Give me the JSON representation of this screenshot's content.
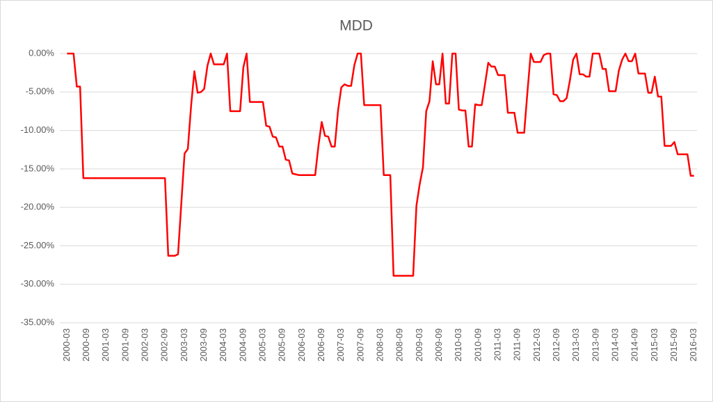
{
  "chart_data": {
    "type": "line",
    "title": "MDD",
    "categories": [
      "2000-03",
      null,
      null,
      null,
      null,
      null,
      "2000-09",
      null,
      null,
      null,
      null,
      null,
      "2001-03",
      null,
      null,
      null,
      null,
      null,
      "2001-09",
      null,
      null,
      null,
      null,
      null,
      "2002-03",
      null,
      null,
      null,
      null,
      null,
      "2002-09",
      null,
      null,
      null,
      null,
      null,
      "2003-03",
      null,
      null,
      null,
      null,
      null,
      "2003-09",
      null,
      null,
      null,
      null,
      null,
      "2004-03",
      null,
      null,
      null,
      null,
      null,
      "2004-09",
      null,
      null,
      null,
      null,
      null,
      "2005-03",
      null,
      null,
      null,
      null,
      null,
      "2005-09",
      null,
      null,
      null,
      null,
      null,
      "2006-03",
      null,
      null,
      null,
      null,
      null,
      "2006-09",
      null,
      null,
      null,
      null,
      null,
      "2007-03",
      null,
      null,
      null,
      null,
      null,
      "2007-09",
      null,
      null,
      null,
      null,
      null,
      "2008-03",
      null,
      null,
      null,
      null,
      null,
      "2008-09",
      null,
      null,
      null,
      null,
      null,
      "2009-03",
      null,
      null,
      null,
      null,
      null,
      "2009-09",
      null,
      null,
      null,
      null,
      null,
      "2010-03",
      null,
      null,
      null,
      null,
      null,
      "2010-09",
      null,
      null,
      null,
      null,
      null,
      "2011-03",
      null,
      null,
      null,
      null,
      null,
      "2011-09",
      null,
      null,
      null,
      null,
      null,
      "2012-03",
      null,
      null,
      null,
      null,
      null,
      "2012-09",
      null,
      null,
      null,
      null,
      null,
      "2013-03",
      null,
      null,
      null,
      null,
      null,
      "2013-09",
      null,
      null,
      null,
      null,
      null,
      "2014-03",
      null,
      null,
      null,
      null,
      null,
      "2014-09",
      null,
      null,
      null,
      null,
      null,
      "2015-03",
      null,
      null,
      null,
      null,
      null,
      "2015-09",
      null,
      null,
      null,
      null,
      null,
      "2016-03"
    ],
    "series": [
      {
        "color": "#ff0000",
        "values": [
          0,
          0,
          0,
          -4.3,
          -4.3,
          -16.2,
          -16.2,
          -16.2,
          -16.2,
          -16.2,
          -16.2,
          -16.2,
          -16.2,
          -16.2,
          -16.2,
          -16.2,
          -16.2,
          -16.2,
          -16.2,
          -16.2,
          -16.2,
          -16.2,
          -16.2,
          -16.2,
          -16.2,
          -16.2,
          -16.2,
          -16.2,
          -16.2,
          -16.2,
          -16.2,
          -26.3,
          -26.3,
          -26.3,
          -26.1,
          -19.5,
          -13.0,
          -12.4,
          -6.8,
          -2.3,
          -5.1,
          -5.0,
          -4.6,
          -1.6,
          0,
          -1.4,
          -1.4,
          -1.4,
          -1.4,
          0,
          -7.5,
          -7.5,
          -7.5,
          -7.5,
          -1.8,
          0,
          -6.3,
          -6.3,
          -6.3,
          -6.3,
          -6.3,
          -9.4,
          -9.5,
          -10.8,
          -10.9,
          -12.1,
          -12.1,
          -13.8,
          -13.9,
          -15.6,
          -15.7,
          -15.8,
          -15.8,
          -15.8,
          -15.8,
          -15.8,
          -15.8,
          -12.0,
          -8.9,
          -10.7,
          -10.8,
          -12.1,
          -12.1,
          -7.4,
          -4.4,
          -4.0,
          -4.2,
          -4.2,
          -1.5,
          0,
          0,
          -6.7,
          -6.7,
          -6.7,
          -6.7,
          -6.7,
          -6.7,
          -15.8,
          -15.8,
          -15.8,
          -28.9,
          -28.9,
          -28.9,
          -28.9,
          -28.9,
          -28.9,
          -28.9,
          -19.8,
          -17.0,
          -14.8,
          -7.5,
          -6.2,
          -1.0,
          -4.0,
          -4.0,
          0,
          -6.5,
          -6.5,
          0,
          0,
          -7.3,
          -7.4,
          -7.4,
          -12.1,
          -12.1,
          -6.6,
          -6.7,
          -6.7,
          -4.0,
          -1.2,
          -1.7,
          -1.7,
          -2.8,
          -2.8,
          -2.8,
          -7.7,
          -7.7,
          -7.7,
          -10.3,
          -10.3,
          -10.3,
          -5.0,
          0,
          -1.1,
          -1.1,
          -1.1,
          -0.2,
          0,
          0,
          -5.3,
          -5.4,
          -6.2,
          -6.2,
          -5.8,
          -3.5,
          -0.8,
          0,
          -2.7,
          -2.7,
          -3.0,
          -3.0,
          0,
          0,
          0,
          -2.0,
          -2.0,
          -4.9,
          -4.9,
          -4.9,
          -2.2,
          -0.8,
          0,
          -1.0,
          -1.0,
          0,
          -2.6,
          -2.6,
          -2.6,
          -5.1,
          -5.1,
          -3.0,
          -5.6,
          -5.6,
          -12.0,
          -12.0,
          -12.0,
          -11.5,
          -13.1,
          -13.1,
          -13.1,
          -13.1,
          -15.9,
          -15.9
        ]
      }
    ],
    "ylim": [
      -35,
      0
    ],
    "yticks": [
      {
        "value": 0,
        "label": "0.00%"
      },
      {
        "value": -5,
        "label": "-5.00%"
      },
      {
        "value": -10,
        "label": "-10.00%"
      },
      {
        "value": -15,
        "label": "-15.00%"
      },
      {
        "value": -20,
        "label": "-20.00%"
      },
      {
        "value": -25,
        "label": "-25.00%"
      },
      {
        "value": -30,
        "label": "-30.00%"
      },
      {
        "value": -35,
        "label": "-35.00%"
      }
    ],
    "grid": true
  }
}
